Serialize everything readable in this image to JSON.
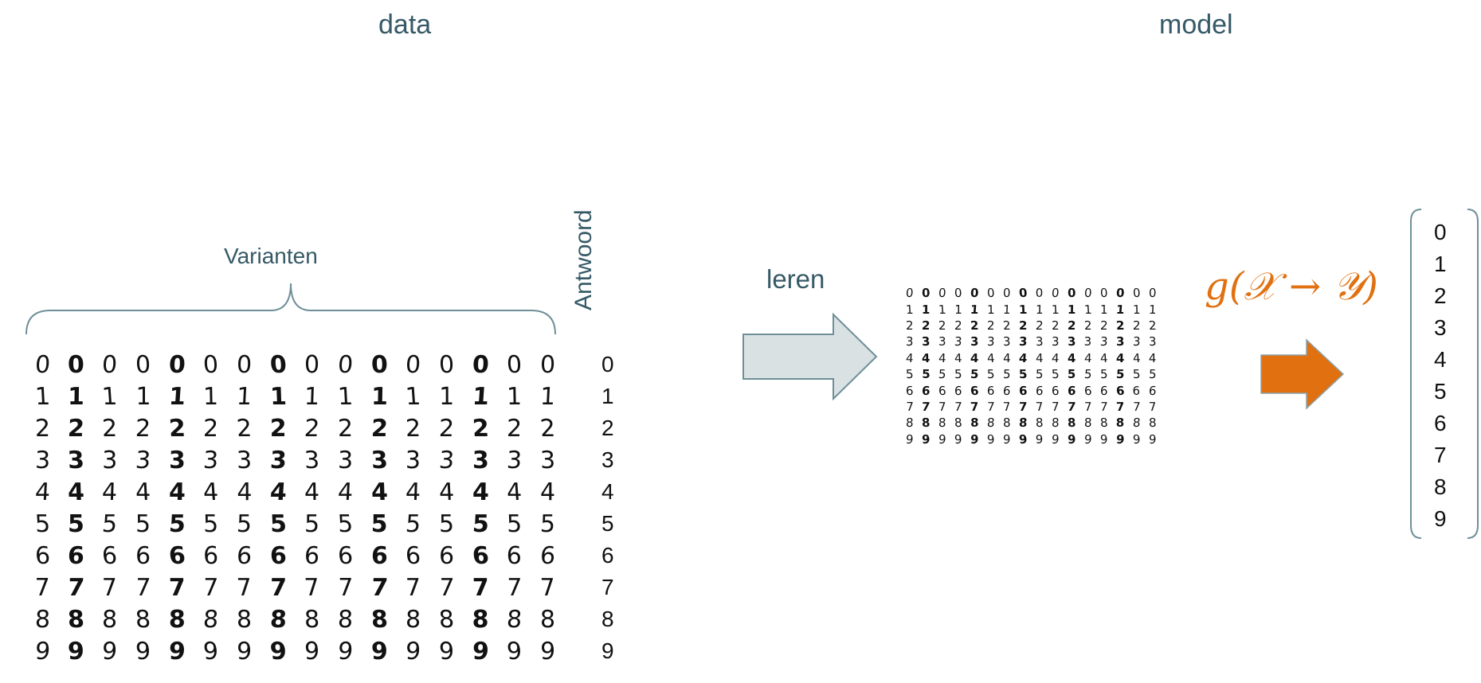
{
  "headings": {
    "data": "data",
    "model": "model"
  },
  "labels": {
    "variants": "Varianten",
    "answer": "Antwoord",
    "learn": "leren",
    "formula": "g(𝒳 → 𝒴)"
  },
  "digits": [
    "0",
    "1",
    "2",
    "3",
    "4",
    "5",
    "6",
    "7",
    "8",
    "9"
  ],
  "colors": {
    "heading": "#355966",
    "learn_arrow_fill": "#d9e1e3",
    "learn_arrow_stroke": "#6f8f98",
    "model_arrow_fill": "#e07010",
    "model_arrow_stroke": "#8aa2aa",
    "formula": "#e07010"
  }
}
